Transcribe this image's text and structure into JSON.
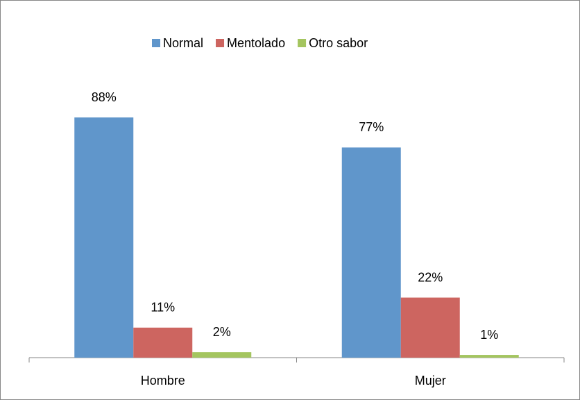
{
  "chart_data": {
    "type": "bar",
    "categories": [
      "Hombre",
      "Mujer"
    ],
    "series": [
      {
        "name": "Normal",
        "color": "#6096cb",
        "values": [
          88,
          77
        ],
        "value_labels": [
          "88%",
          "77%"
        ]
      },
      {
        "name": "Mentolado",
        "color": "#cd6560",
        "values": [
          11,
          22
        ],
        "value_labels": [
          "11%",
          "22%"
        ]
      },
      {
        "name": "Otro sabor",
        "color": "#a4c55f",
        "values": [
          2,
          1
        ],
        "value_labels": [
          "2%",
          "1%"
        ]
      }
    ],
    "legend": "top"
  }
}
